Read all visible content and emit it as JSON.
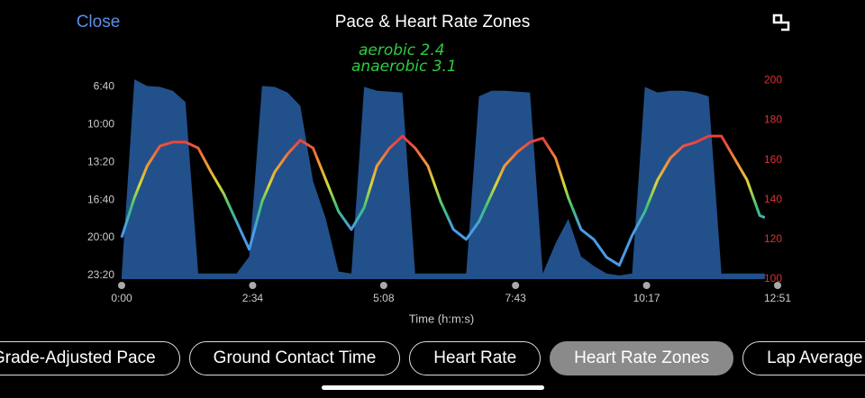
{
  "header": {
    "close": "Close",
    "title": "Pace & Heart Rate Zones"
  },
  "chart_data": {
    "type": "combo",
    "annotations": [
      "aerobic  2.4",
      "anaerobic 3.1"
    ],
    "x_label": "Time (h:m:s)",
    "x": [
      0,
      15,
      30,
      45,
      60,
      75,
      90,
      105,
      120,
      135,
      150,
      165,
      180,
      195,
      210,
      225,
      240,
      255,
      270,
      285,
      300,
      315,
      330,
      345,
      360,
      375,
      390,
      405,
      420,
      435,
      450,
      465,
      480,
      495,
      510,
      525,
      540,
      555,
      570,
      585,
      600,
      615,
      630,
      645,
      660,
      675,
      690,
      705,
      720,
      735,
      750,
      756
    ],
    "xlim": [
      0,
      771
    ],
    "xticks": [
      {
        "value": 0,
        "label": "0:00"
      },
      {
        "value": 154,
        "label": "2:34"
      },
      {
        "value": 308,
        "label": "5:08"
      },
      {
        "value": 463,
        "label": "7:43"
      },
      {
        "value": 617,
        "label": "10:17"
      },
      {
        "value": 771,
        "label": "12:51"
      }
    ],
    "ylim": [
      1420,
      345
    ],
    "yticks": [
      {
        "value": 400,
        "label": "6:40"
      },
      {
        "value": 600,
        "label": "10:00"
      },
      {
        "value": 800,
        "label": "13:20"
      },
      {
        "value": 1000,
        "label": "16:40"
      },
      {
        "value": 1200,
        "label": "20:00"
      },
      {
        "value": 1400,
        "label": "23:20"
      }
    ],
    "y2lim": [
      100,
      202
    ],
    "y2ticks": [
      100,
      120,
      140,
      160,
      180,
      200
    ],
    "series": [
      {
        "type": "area",
        "color": "#22508a",
        "values": [
          1400,
          360,
          395,
          400,
          420,
          480,
          1390,
          1390,
          1390,
          1390,
          1300,
          395,
          400,
          430,
          500,
          900,
          1100,
          1380,
          1390,
          400,
          420,
          425,
          430,
          1390,
          1390,
          1390,
          1390,
          1390,
          450,
          420,
          420,
          425,
          430,
          1390,
          1230,
          1100,
          1300,
          1350,
          1390,
          1400,
          1390,
          400,
          430,
          420,
          420,
          430,
          450,
          1390,
          1390,
          1390,
          1390,
          1390
        ]
      },
      {
        "type": "line",
        "axis": "y2",
        "colors": [
          "#4a9be8",
          "#3cc47a",
          "#d8d83a",
          "#f0913a",
          "#e84040"
        ],
        "values": [
          121,
          141,
          157,
          167,
          169,
          169,
          166,
          154,
          143,
          129,
          115,
          139,
          154,
          163,
          170,
          166,
          150,
          134,
          125,
          136,
          157,
          166,
          172,
          166,
          157,
          139,
          125,
          120,
          129,
          143,
          157,
          164,
          169,
          171,
          161,
          141,
          125,
          120,
          111,
          107,
          122,
          134,
          150,
          161,
          167,
          169,
          172,
          172,
          161,
          150,
          132,
          131
        ]
      }
    ]
  },
  "tabs": [
    {
      "label": "Grade-Adjusted Pace",
      "selected": false
    },
    {
      "label": "Ground Contact Time",
      "selected": false
    },
    {
      "label": "Heart Rate",
      "selected": false
    },
    {
      "label": "Heart Rate Zones",
      "selected": true
    },
    {
      "label": "Lap Average Pace",
      "selected": false
    }
  ]
}
